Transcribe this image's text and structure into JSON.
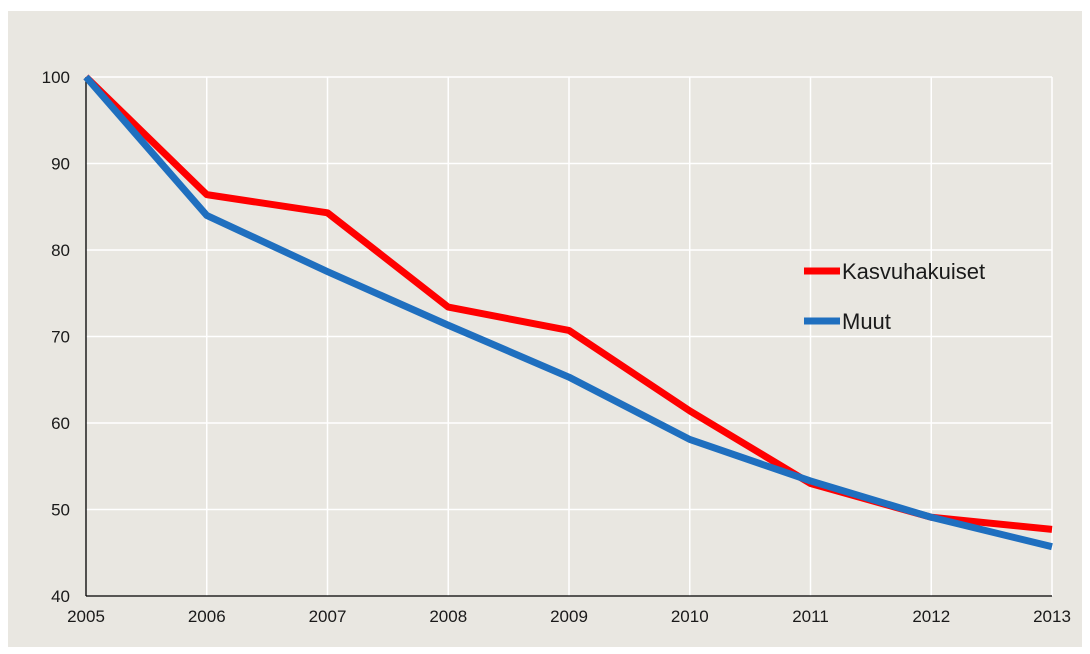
{
  "chart_data": {
    "type": "line",
    "x": [
      "2005",
      "2006",
      "2007",
      "2008",
      "2009",
      "2010",
      "2011",
      "2012",
      "2013"
    ],
    "series": [
      {
        "name": "Kasvuhakuiset",
        "color": "#ff0000",
        "values": [
          100,
          86.4,
          84.3,
          73.4,
          70.7,
          61.4,
          53.0,
          49.1,
          47.7
        ]
      },
      {
        "name": "Muut",
        "color": "#1f6fbf",
        "values": [
          100,
          84.0,
          77.5,
          71.3,
          65.3,
          58.1,
          53.3,
          49.1,
          45.7
        ]
      }
    ],
    "ylim": [
      40,
      100
    ],
    "yticks": [
      40,
      50,
      60,
      70,
      80,
      90,
      100
    ],
    "grid": true,
    "legend_position": "right",
    "title": "",
    "xlabel": "",
    "ylabel": ""
  }
}
